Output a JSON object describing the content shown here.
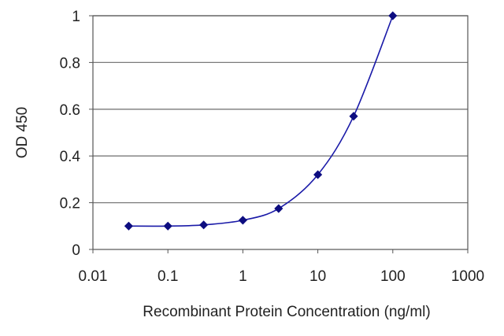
{
  "chart_data": {
    "type": "line",
    "xscale": "log",
    "yscale": "linear",
    "xlim": [
      0.01,
      1000
    ],
    "ylim": [
      0,
      1
    ],
    "xticks": [
      0.01,
      0.1,
      1,
      10,
      100,
      1000
    ],
    "xtick_labels": [
      "0.01",
      "0.1",
      "1",
      "10",
      "100",
      "1000"
    ],
    "yticks": [
      0,
      0.2,
      0.4,
      0.6,
      0.8,
      1
    ],
    "ytick_labels": [
      "0",
      "0.2",
      "0.4",
      "0.6",
      "0.8",
      "1"
    ],
    "xlabel": "Recombinant Protein Concentration (ng/ml)",
    "ylabel": "OD 450",
    "grid": "horizontal",
    "series": [
      {
        "x": [
          0.03,
          0.1,
          0.3,
          1,
          3,
          10,
          30,
          100
        ],
        "y": [
          0.1,
          0.1,
          0.105,
          0.125,
          0.175,
          0.32,
          0.57,
          1.0
        ],
        "color": "#1a1aa8"
      }
    ]
  }
}
